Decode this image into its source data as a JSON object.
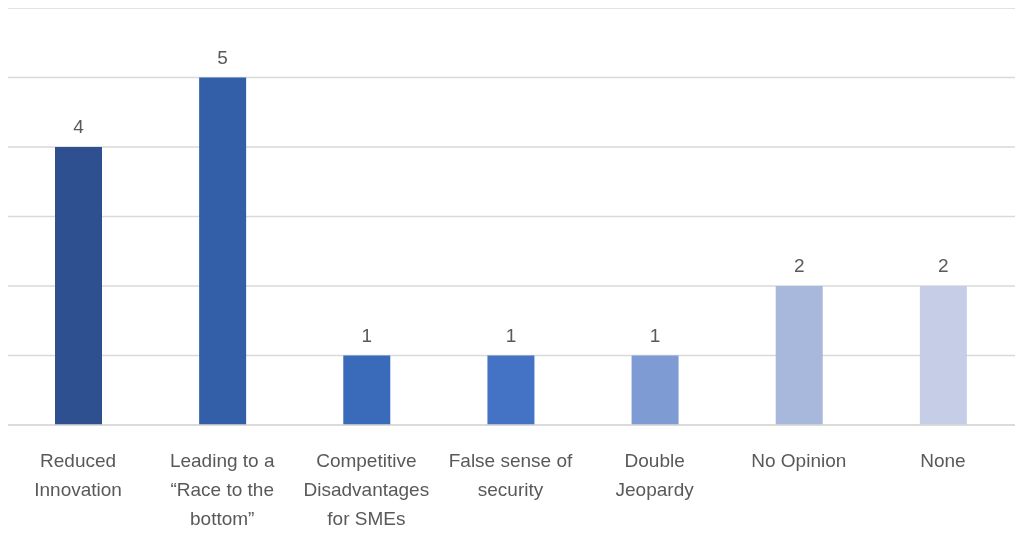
{
  "chart_data": {
    "type": "bar",
    "categories": [
      "Reduced Innovation",
      "Leading to a “Race to the bottom”",
      "Competitive Disadvantages for SMEs",
      "False sense of security",
      "Double Jeopardy",
      "No Opinion",
      "None"
    ],
    "values": [
      4,
      5,
      1,
      1,
      1,
      2,
      2
    ],
    "colors": [
      "#2f5090",
      "#335ea8",
      "#3a6bbb",
      "#4472c4",
      "#7f9bd3",
      "#a8b7dc",
      "#c5cee6"
    ],
    "ylim": [
      0,
      6
    ],
    "yticks": [
      {
        "value": 0,
        "label": null
      },
      {
        "value": 1,
        "label": null
      },
      {
        "value": 2,
        "label": null
      },
      {
        "value": 3,
        "label": null
      },
      {
        "value": 4,
        "label": null
      },
      {
        "value": 5,
        "label": null
      },
      {
        "value": 6,
        "label": null
      }
    ],
    "grid": "y",
    "tick_labels": "x",
    "data_labels": true
  }
}
